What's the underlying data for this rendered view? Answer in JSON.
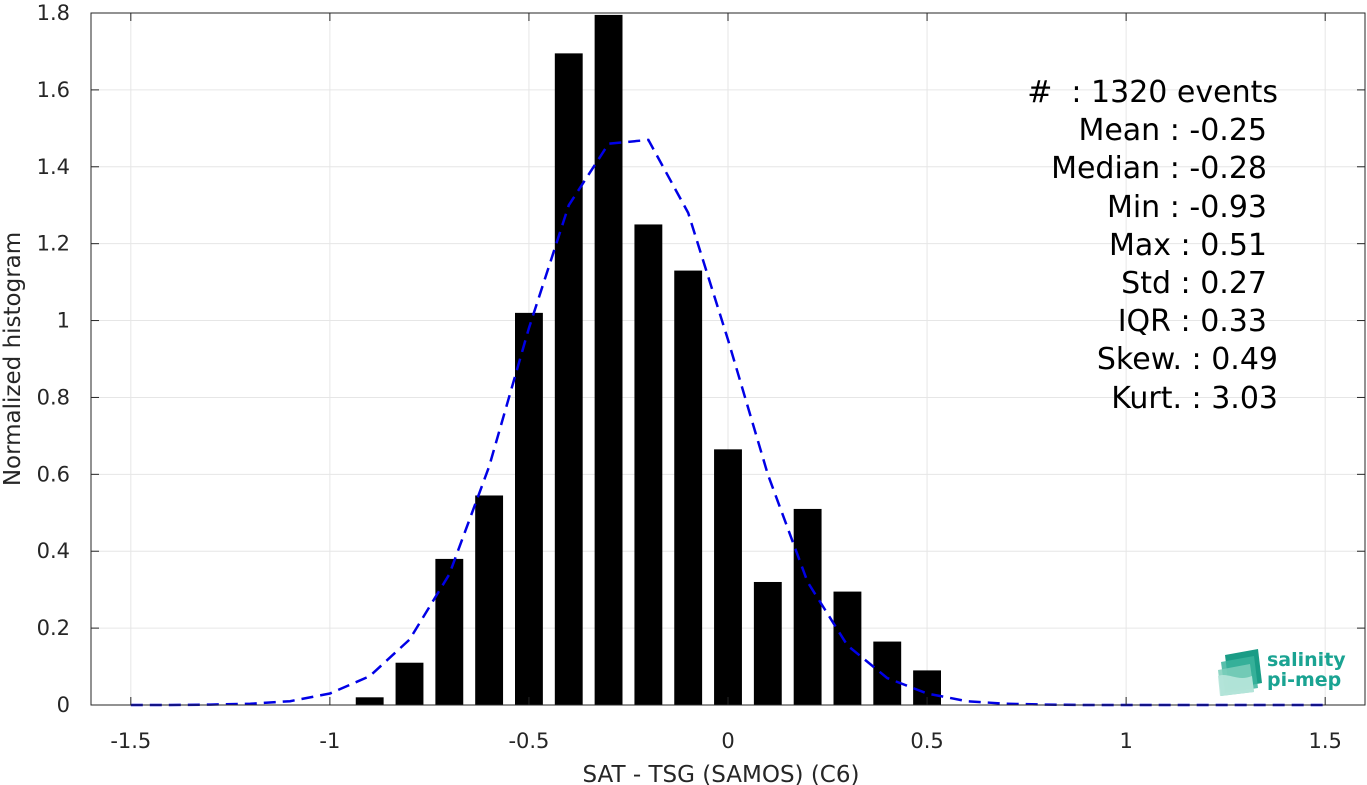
{
  "chart_data": {
    "type": "bar",
    "xlabel": "SAT - TSG (SAMOS) (C6)",
    "ylabel": "Normalized histogram",
    "xlim": [
      -1.6,
      1.6
    ],
    "ylim": [
      0,
      1.8
    ],
    "xticks": [
      -1.5,
      -1,
      -0.5,
      0,
      0.5,
      1,
      1.5
    ],
    "xtick_labels": [
      "-1.5",
      "-1",
      "-0.5",
      "0",
      "0.5",
      "1",
      "1.5"
    ],
    "yticks": [
      0,
      0.2,
      0.4,
      0.6,
      0.8,
      1,
      1.2,
      1.4,
      1.6,
      1.8
    ],
    "ytick_labels": [
      "0",
      "0.2",
      "0.4",
      "0.6",
      "0.8",
      "1",
      "1.2",
      "1.4",
      "1.6",
      "1.8"
    ],
    "grid": true,
    "bar_width": 0.07,
    "bar_color": "#000000",
    "bars": [
      {
        "x": -0.9,
        "y": 0.02
      },
      {
        "x": -0.8,
        "y": 0.11
      },
      {
        "x": -0.7,
        "y": 0.38
      },
      {
        "x": -0.6,
        "y": 0.545
      },
      {
        "x": -0.5,
        "y": 1.02
      },
      {
        "x": -0.4,
        "y": 1.695
      },
      {
        "x": -0.3,
        "y": 1.795
      },
      {
        "x": -0.2,
        "y": 1.25
      },
      {
        "x": -0.1,
        "y": 1.13
      },
      {
        "x": 0.0,
        "y": 0.665
      },
      {
        "x": 0.1,
        "y": 0.32
      },
      {
        "x": 0.2,
        "y": 0.51
      },
      {
        "x": 0.3,
        "y": 0.295
      },
      {
        "x": 0.4,
        "y": 0.165
      },
      {
        "x": 0.5,
        "y": 0.09
      }
    ],
    "fit_curve": {
      "style": "dashed",
      "color": "#0000e6",
      "x": [
        -1.5,
        -1.4,
        -1.3,
        -1.2,
        -1.1,
        -1.0,
        -0.9,
        -0.8,
        -0.7,
        -0.6,
        -0.5,
        -0.4,
        -0.3,
        -0.2,
        -0.1,
        0.0,
        0.1,
        0.2,
        0.3,
        0.4,
        0.5,
        0.6,
        0.7,
        0.8,
        0.9,
        1.0,
        1.1,
        1.2,
        1.3,
        1.4,
        1.5
      ],
      "y": [
        0.0,
        0.0,
        0.001,
        0.003,
        0.01,
        0.03,
        0.075,
        0.17,
        0.34,
        0.62,
        0.98,
        1.3,
        1.46,
        1.47,
        1.28,
        0.95,
        0.6,
        0.32,
        0.155,
        0.07,
        0.03,
        0.01,
        0.003,
        0.001,
        0.0,
        0.0,
        0.0,
        0.0,
        0.0,
        0.0,
        0.0
      ]
    },
    "stats": [
      "#  : 1320 events",
      "Mean : -0.25",
      "Median : -0.28",
      "Min : -0.93",
      "Max : 0.51",
      "Std : 0.27",
      "IQR : 0.33",
      "Skew. : 0.49",
      "Kurt. : 3.03"
    ]
  },
  "logo": {
    "line1": "salinity",
    "line2": "pi-mep",
    "color": "#1aa392"
  }
}
